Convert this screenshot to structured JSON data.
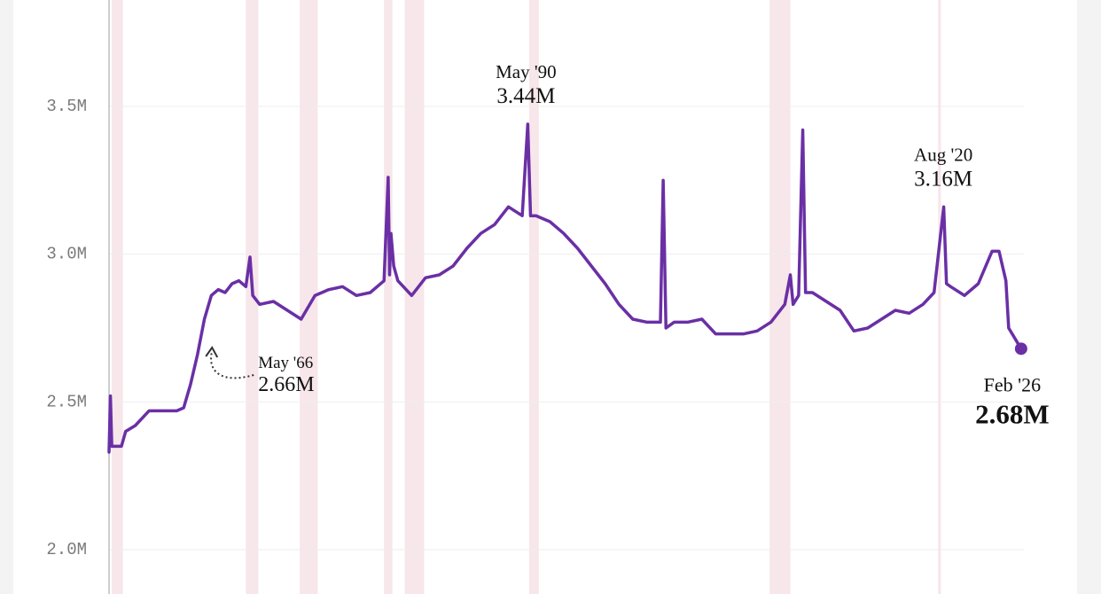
{
  "chart_data": {
    "type": "line",
    "ylim": [
      1.85,
      3.86
    ],
    "yticks": [
      {
        "value": 2.0,
        "label": "2.0M"
      },
      {
        "value": 2.5,
        "label": "2.5M"
      },
      {
        "value": 3.0,
        "label": "3.0M"
      },
      {
        "value": 3.5,
        "label": "3.5M"
      }
    ],
    "xlim": [
      1960.1,
      2026.3
    ],
    "grid": true,
    "recession_color": "#f7e6ea",
    "recessions": [
      [
        1960.3,
        1961.1
      ],
      [
        1970.0,
        1970.9
      ],
      [
        1973.9,
        1975.2
      ],
      [
        1980.0,
        1980.6
      ],
      [
        1981.5,
        1982.9
      ],
      [
        1990.5,
        1991.2
      ],
      [
        2007.9,
        2009.4
      ],
      [
        2020.1,
        2020.3
      ]
    ],
    "series": [
      {
        "color": "#6a2fa5",
        "x": [
          1960.1,
          1960.2,
          1960.3,
          1961.0,
          1961.3,
          1962.0,
          1963.0,
          1964.0,
          1965.0,
          1965.5,
          1966.0,
          1966.5,
          1967.0,
          1967.5,
          1968.0,
          1968.5,
          1969.0,
          1969.5,
          1970.0,
          1970.3,
          1970.5,
          1971.0,
          1972.0,
          1973.0,
          1974.0,
          1975.0,
          1976.0,
          1977.0,
          1978.0,
          1979.0,
          1980.0,
          1980.3,
          1980.4,
          1980.5,
          1980.7,
          1981.0,
          1982.0,
          1983.0,
          1984.0,
          1985.0,
          1986.0,
          1987.0,
          1988.0,
          1989.0,
          1990.0,
          1990.4,
          1990.6,
          1991.0,
          1992.0,
          1993.0,
          1994.0,
          1995.0,
          1996.0,
          1997.0,
          1998.0,
          1999.0,
          2000.0,
          2000.2,
          2000.4,
          2001.0,
          2002.0,
          2003.0,
          2004.0,
          2005.0,
          2006.0,
          2007.0,
          2008.0,
          2009.0,
          2009.4,
          2009.6,
          2010.0,
          2010.3,
          2010.5,
          2011.0,
          2012.0,
          2013.0,
          2014.0,
          2015.0,
          2016.0,
          2017.0,
          2018.0,
          2019.0,
          2019.8,
          2020.5,
          2020.7,
          2021.0,
          2022.0,
          2023.0,
          2024.0,
          2024.5,
          2025.0,
          2025.2,
          2026.1
        ],
        "values": [
          2.33,
          2.52,
          2.35,
          2.35,
          2.4,
          2.42,
          2.47,
          2.47,
          2.47,
          2.48,
          2.56,
          2.66,
          2.78,
          2.86,
          2.88,
          2.87,
          2.9,
          2.91,
          2.89,
          2.99,
          2.86,
          2.83,
          2.84,
          2.81,
          2.78,
          2.86,
          2.88,
          2.89,
          2.86,
          2.87,
          2.91,
          3.26,
          2.93,
          3.07,
          2.96,
          2.91,
          2.86,
          2.92,
          2.93,
          2.96,
          3.02,
          3.07,
          3.1,
          3.16,
          3.13,
          3.44,
          3.13,
          3.13,
          3.11,
          3.07,
          3.02,
          2.96,
          2.9,
          2.83,
          2.78,
          2.77,
          2.77,
          3.25,
          2.75,
          2.77,
          2.77,
          2.78,
          2.73,
          2.73,
          2.73,
          2.74,
          2.77,
          2.83,
          2.93,
          2.83,
          2.86,
          3.42,
          2.87,
          2.87,
          2.84,
          2.81,
          2.74,
          2.75,
          2.78,
          2.81,
          2.8,
          2.83,
          2.87,
          3.16,
          2.9,
          2.89,
          2.86,
          2.9,
          3.01,
          3.01,
          2.91,
          2.75,
          2.68
        ]
      }
    ],
    "annotations": [
      {
        "label": "May '66",
        "value_label": "2.66M",
        "x": 1966.4,
        "value": 2.66
      },
      {
        "label": "May '90",
        "value_label": "3.44M",
        "x": 1990.4,
        "value": 3.44
      },
      {
        "label": "Aug '20",
        "value_label": "3.16M",
        "x": 2020.6,
        "value": 3.16
      },
      {
        "label": "Feb '26",
        "value_label": "2.68M",
        "x": 2026.1,
        "value": 2.68
      }
    ]
  }
}
